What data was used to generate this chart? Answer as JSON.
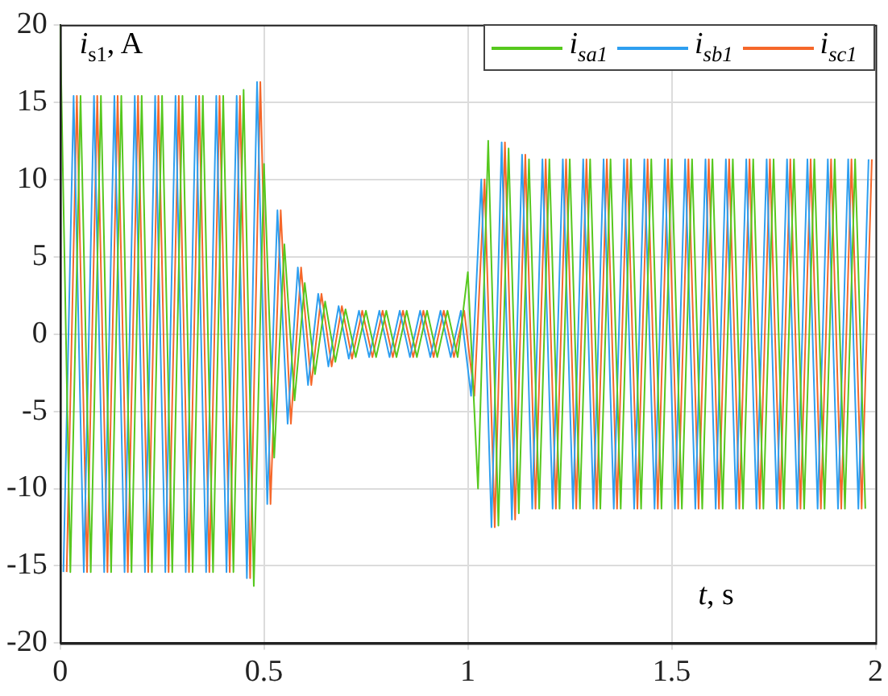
{
  "chart_data": {
    "type": "line",
    "xlabel": "t, s",
    "ylabel": "i$_{s1}$, A",
    "xlim": [
      0,
      2
    ],
    "xticks": [
      0,
      0.5,
      1,
      1.5,
      2
    ],
    "ylim": [
      -20,
      20
    ],
    "yticks": [
      -20,
      -15,
      -10,
      -5,
      0,
      5,
      10,
      15,
      20
    ],
    "grid": true,
    "legend": "top right",
    "marker": "none",
    "line_style": "solid",
    "series": [
      {
        "name": "i$_{sa1}$",
        "color": "#56c81e",
        "x": [
          0,
          0.025,
          0.05,
          0.075,
          0.1,
          0.125,
          0.15,
          0.175,
          0.2,
          0.225,
          0.25,
          0.275,
          0.3,
          0.325,
          0.35,
          0.375,
          0.4,
          0.425,
          0.45,
          0.475,
          0.5,
          0.525,
          0.55,
          0.575,
          0.6,
          0.625,
          0.65,
          0.675,
          0.7,
          0.725,
          0.75,
          0.775,
          0.8,
          0.825,
          0.85,
          0.875,
          0.9,
          0.925,
          0.95,
          0.975,
          1,
          1.025,
          1.05,
          1.075,
          1.1,
          1.125,
          1.15,
          1.175,
          1.2,
          1.225,
          1.25,
          1.275,
          1.3,
          1.325,
          1.35,
          1.375,
          1.4,
          1.425,
          1.45,
          1.475,
          1.5,
          1.525,
          1.55,
          1.575,
          1.6,
          1.625,
          1.65,
          1.675,
          1.7,
          1.725,
          1.75,
          1.775,
          1.8,
          1.825,
          1.85,
          1.875,
          1.9,
          1.925,
          1.95,
          1.975
        ],
        "values": [
          20,
          -15.4,
          15.4,
          -15.4,
          15.4,
          -15.4,
          15.4,
          -15.4,
          15.4,
          -15.4,
          15.4,
          -15.4,
          15.4,
          -15.4,
          15.4,
          -15.4,
          15.4,
          -15.4,
          15.8,
          -16.3,
          11,
          -8,
          5.8,
          -4.3,
          3.3,
          -2.6,
          2.1,
          -1.8,
          1.6,
          -1.5,
          1.5,
          -1.5,
          1.5,
          -1.5,
          1.5,
          -1.5,
          1.5,
          -1.5,
          1.5,
          -1.5,
          4,
          -10,
          12.5,
          -12.4,
          12,
          -11.6,
          11.3,
          -11.3,
          11.3,
          -11.3,
          11.3,
          -11.3,
          11.3,
          -11.3,
          11.3,
          -11.3,
          11.3,
          -11.3,
          11.3,
          -11.3,
          11.3,
          -11.3,
          11.3,
          -11.3,
          11.3,
          -11.3,
          11.3,
          -11.3,
          11.3,
          -11.3,
          11.3,
          -11.3,
          11.3,
          -11.3,
          11.3,
          -11.3,
          11.3,
          -11.3,
          11.3,
          -11.3
        ]
      },
      {
        "name": "i$_{sb1}$",
        "color": "#2e9ff0",
        "x": [
          0.008,
          0.033,
          0.058,
          0.083,
          0.108,
          0.133,
          0.158,
          0.183,
          0.208,
          0.233,
          0.258,
          0.283,
          0.308,
          0.333,
          0.358,
          0.383,
          0.408,
          0.433,
          0.458,
          0.483,
          0.508,
          0.533,
          0.558,
          0.583,
          0.608,
          0.633,
          0.658,
          0.683,
          0.708,
          0.733,
          0.758,
          0.783,
          0.808,
          0.833,
          0.858,
          0.883,
          0.908,
          0.933,
          0.958,
          0.983,
          1.008,
          1.033,
          1.058,
          1.083,
          1.108,
          1.133,
          1.158,
          1.183,
          1.208,
          1.233,
          1.258,
          1.283,
          1.308,
          1.333,
          1.358,
          1.383,
          1.408,
          1.433,
          1.458,
          1.483,
          1.508,
          1.533,
          1.558,
          1.583,
          1.608,
          1.633,
          1.658,
          1.683,
          1.708,
          1.733,
          1.758,
          1.783,
          1.808,
          1.833,
          1.858,
          1.883,
          1.908,
          1.933,
          1.958,
          1.983
        ],
        "values": [
          -15.4,
          15.4,
          -15.4,
          15.4,
          -15.4,
          15.4,
          -15.4,
          15.4,
          -15.4,
          15.4,
          -15.4,
          15.4,
          -15.4,
          15.4,
          -15.4,
          15.4,
          -15.4,
          15.4,
          -15.8,
          16.3,
          -11,
          8,
          -5.8,
          4.3,
          -3.3,
          2.6,
          -2.1,
          1.8,
          -1.6,
          1.5,
          -1.5,
          1.5,
          -1.5,
          1.5,
          -1.5,
          1.5,
          -1.5,
          1.5,
          -1.5,
          1.5,
          -4,
          10,
          -12.5,
          12.4,
          -12,
          11.6,
          -11.3,
          11.3,
          -11.3,
          11.3,
          -11.3,
          11.3,
          -11.3,
          11.3,
          -11.3,
          11.3,
          -11.3,
          11.3,
          -11.3,
          11.3,
          -11.3,
          11.3,
          -11.3,
          11.3,
          -11.3,
          11.3,
          -11.3,
          11.3,
          -11.3,
          11.3,
          -11.3,
          11.3,
          -11.3,
          11.3,
          -11.3,
          11.3,
          -11.3,
          11.3,
          -11.3,
          11.3
        ]
      },
      {
        "name": "i$_{sc1}$",
        "color": "#f5672a",
        "x": [
          0.016,
          0.041,
          0.066,
          0.091,
          0.116,
          0.141,
          0.166,
          0.191,
          0.216,
          0.241,
          0.266,
          0.291,
          0.316,
          0.341,
          0.366,
          0.391,
          0.416,
          0.441,
          0.466,
          0.491,
          0.516,
          0.541,
          0.566,
          0.591,
          0.616,
          0.641,
          0.666,
          0.691,
          0.716,
          0.741,
          0.766,
          0.791,
          0.816,
          0.841,
          0.866,
          0.891,
          0.916,
          0.941,
          0.966,
          0.991,
          1.016,
          1.041,
          1.066,
          1.091,
          1.116,
          1.141,
          1.166,
          1.191,
          1.216,
          1.241,
          1.266,
          1.291,
          1.316,
          1.341,
          1.366,
          1.391,
          1.416,
          1.441,
          1.466,
          1.491,
          1.516,
          1.541,
          1.566,
          1.591,
          1.616,
          1.641,
          1.666,
          1.691,
          1.716,
          1.741,
          1.766,
          1.791,
          1.816,
          1.841,
          1.866,
          1.891,
          1.916,
          1.941,
          1.966,
          1.991
        ],
        "values": [
          -15.4,
          15.4,
          -15.4,
          15.4,
          -15.4,
          15.4,
          -15.4,
          15.4,
          -15.4,
          15.4,
          -15.4,
          15.4,
          -15.4,
          15.4,
          -15.4,
          15.4,
          -15.4,
          15.4,
          -15.8,
          16.3,
          -11,
          8,
          -5.8,
          4.3,
          -3.3,
          2.6,
          -2.1,
          1.8,
          -1.6,
          1.5,
          -1.5,
          1.5,
          -1.5,
          1.5,
          -1.5,
          1.5,
          -1.5,
          1.5,
          -1.5,
          1.5,
          -4,
          10,
          -12.5,
          12.4,
          -12,
          11.6,
          -11.3,
          11.3,
          -11.3,
          11.3,
          -11.3,
          11.3,
          -11.3,
          11.3,
          -11.3,
          11.3,
          -11.3,
          11.3,
          -11.3,
          11.3,
          -11.3,
          11.3,
          -11.3,
          11.3,
          -11.3,
          11.3,
          -11.3,
          11.3,
          -11.3,
          11.3,
          -11.3,
          11.3,
          -11.3,
          11.3,
          -11.3,
          11.3,
          -11.3,
          11.3,
          -11.3,
          11.3
        ]
      }
    ]
  }
}
